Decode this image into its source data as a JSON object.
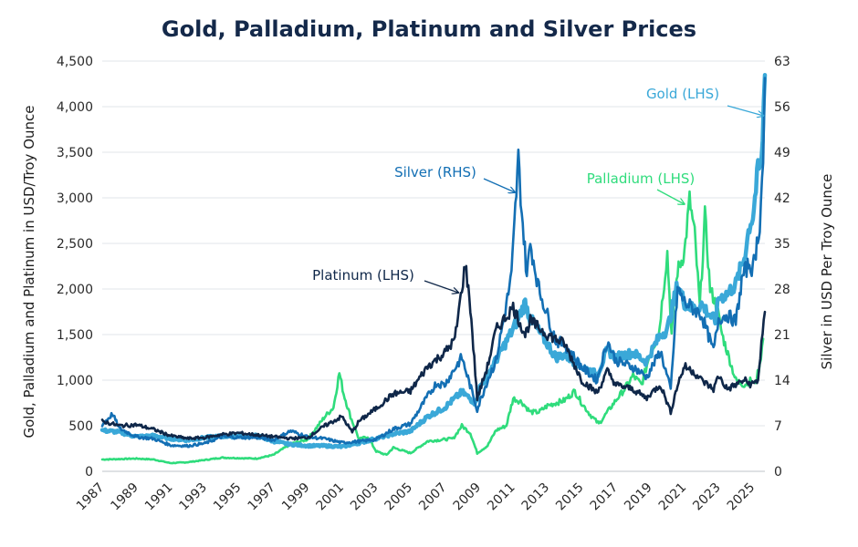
{
  "chart_data": {
    "type": "line",
    "title": "Gold, Palladium, Platinum and Silver Prices",
    "ylabel_left": "Gold, Palladium and Platinum in USD/Troy Ounce",
    "ylabel_right": "Silver in USD Per Troy Ounce",
    "ylim_left": [
      0,
      4500
    ],
    "ylim_right": [
      0,
      63
    ],
    "xlim": [
      1987,
      2025.7
    ],
    "yticks_left": [
      "0",
      "500",
      "1,000",
      "1,500",
      "2,000",
      "2,500",
      "3,000",
      "3,500",
      "4,000",
      "4,500"
    ],
    "yticks_right": [
      "0",
      "7",
      "14",
      "21",
      "28",
      "35",
      "42",
      "49",
      "56",
      "63"
    ],
    "xticks": [
      "1987",
      "1989",
      "1991",
      "1993",
      "1995",
      "1997",
      "1999",
      "2001",
      "2003",
      "2005",
      "2007",
      "2009",
      "2011",
      "2013",
      "2015",
      "2017",
      "2019",
      "2021",
      "2023",
      "2025"
    ],
    "grid": true,
    "series": [
      {
        "name": "Palladium (LHS)",
        "axis": "left",
        "color": "#2fdc7c",
        "width": 2.6,
        "points": [
          [
            1987,
            130
          ],
          [
            1989,
            140
          ],
          [
            1990,
            130
          ],
          [
            1991,
            90
          ],
          [
            1992,
            100
          ],
          [
            1994,
            150
          ],
          [
            1996,
            140
          ],
          [
            1997,
            180
          ],
          [
            1998,
            300
          ],
          [
            1999,
            350
          ],
          [
            2000,
            600
          ],
          [
            2000.5,
            700
          ],
          [
            2000.85,
            1080
          ],
          [
            2001.1,
            850
          ],
          [
            2001.5,
            600
          ],
          [
            2002,
            350
          ],
          [
            2002.5,
            380
          ],
          [
            2003,
            220
          ],
          [
            2003.6,
            180
          ],
          [
            2004,
            260
          ],
          [
            2005,
            200
          ],
          [
            2006,
            330
          ],
          [
            2007,
            350
          ],
          [
            2007.5,
            360
          ],
          [
            2008,
            500
          ],
          [
            2008.5,
            420
          ],
          [
            2008.9,
            200
          ],
          [
            2009.5,
            280
          ],
          [
            2010,
            450
          ],
          [
            2010.6,
            500
          ],
          [
            2011,
            800
          ],
          [
            2011.5,
            760
          ],
          [
            2012,
            650
          ],
          [
            2012.5,
            650
          ],
          [
            2013,
            720
          ],
          [
            2014,
            780
          ],
          [
            2014.6,
            880
          ],
          [
            2015,
            750
          ],
          [
            2015.5,
            620
          ],
          [
            2016,
            520
          ],
          [
            2016.5,
            650
          ],
          [
            2017,
            780
          ],
          [
            2017.5,
            900
          ],
          [
            2018,
            1050
          ],
          [
            2018.5,
            950
          ],
          [
            2019,
            1300
          ],
          [
            2019.5,
            1500
          ],
          [
            2020,
            2400
          ],
          [
            2020.25,
            1500
          ],
          [
            2020.6,
            2200
          ],
          [
            2021,
            2400
          ],
          [
            2021.3,
            2980
          ],
          [
            2021.6,
            2600
          ],
          [
            2021.9,
            1800
          ],
          [
            2022.2,
            2800
          ],
          [
            2022.5,
            2000
          ],
          [
            2022.9,
            1800
          ],
          [
            2023.2,
            1500
          ],
          [
            2023.6,
            1250
          ],
          [
            2024,
            1000
          ],
          [
            2024.5,
            950
          ],
          [
            2024.9,
            1000
          ],
          [
            2025.1,
            950
          ],
          [
            2025.4,
            1150
          ],
          [
            2025.6,
            1500
          ]
        ]
      },
      {
        "name": "Gold (LHS)",
        "axis": "left",
        "color": "#3aa8d8",
        "width": 4.5,
        "points": [
          [
            1987,
            450
          ],
          [
            1988,
            430
          ],
          [
            1989,
            380
          ],
          [
            1990,
            390
          ],
          [
            1991,
            360
          ],
          [
            1992,
            340
          ],
          [
            1993,
            370
          ],
          [
            1994,
            385
          ],
          [
            1995,
            385
          ],
          [
            1996,
            390
          ],
          [
            1997,
            330
          ],
          [
            1998,
            295
          ],
          [
            1999,
            280
          ],
          [
            2000,
            280
          ],
          [
            2001,
            270
          ],
          [
            2002,
            310
          ],
          [
            2003,
            360
          ],
          [
            2004,
            410
          ],
          [
            2005,
            440
          ],
          [
            2006,
            600
          ],
          [
            2007,
            700
          ],
          [
            2008,
            870
          ],
          [
            2008.8,
            750
          ],
          [
            2009,
            900
          ],
          [
            2010,
            1220
          ],
          [
            2011,
            1560
          ],
          [
            2011.7,
            1850
          ],
          [
            2012,
            1670
          ],
          [
            2013,
            1400
          ],
          [
            2013.5,
            1250
          ],
          [
            2014,
            1280
          ],
          [
            2015,
            1150
          ],
          [
            2015.9,
            1060
          ],
          [
            2016.5,
            1330
          ],
          [
            2017,
            1250
          ],
          [
            2018,
            1300
          ],
          [
            2018.8,
            1200
          ],
          [
            2019,
            1290
          ],
          [
            2019.6,
            1500
          ],
          [
            2020,
            1550
          ],
          [
            2020.6,
            2050
          ],
          [
            2021,
            1850
          ],
          [
            2021.5,
            1780
          ],
          [
            2022,
            1830
          ],
          [
            2022.8,
            1640
          ],
          [
            2023,
            1900
          ],
          [
            2023.5,
            1950
          ],
          [
            2024,
            2050
          ],
          [
            2024.5,
            2350
          ],
          [
            2024.8,
            2700
          ],
          [
            2025,
            2800
          ],
          [
            2025.3,
            3300
          ],
          [
            2025.5,
            3350
          ],
          [
            2025.7,
            4350
          ]
        ]
      },
      {
        "name": "Silver (RHS)",
        "axis": "right",
        "color": "#136fb4",
        "width": 2.6,
        "points": [
          [
            1987,
            7.2
          ],
          [
            1987.6,
            8.8
          ],
          [
            1988,
            6.6
          ],
          [
            1989,
            5.3
          ],
          [
            1990,
            5.0
          ],
          [
            1991,
            4.0
          ],
          [
            1992,
            3.9
          ],
          [
            1993,
            4.3
          ],
          [
            1994,
            5.3
          ],
          [
            1995,
            5.2
          ],
          [
            1996,
            5.2
          ],
          [
            1997,
            4.8
          ],
          [
            1998,
            6.2
          ],
          [
            1999,
            5.3
          ],
          [
            2000,
            5.0
          ],
          [
            2001,
            4.4
          ],
          [
            2002,
            4.6
          ],
          [
            2003,
            4.9
          ],
          [
            2004,
            6.5
          ],
          [
            2005,
            7.3
          ],
          [
            2006,
            11.5
          ],
          [
            2006.5,
            13.5
          ],
          [
            2007,
            13.3
          ],
          [
            2008,
            17.5
          ],
          [
            2008.9,
            9.5
          ],
          [
            2009.5,
            14
          ],
          [
            2010,
            17
          ],
          [
            2010.9,
            30
          ],
          [
            2011.3,
            48
          ],
          [
            2011.5,
            40
          ],
          [
            2011.8,
            30
          ],
          [
            2012,
            35
          ],
          [
            2012.5,
            28
          ],
          [
            2013,
            24
          ],
          [
            2013.5,
            20
          ],
          [
            2014,
            19.5
          ],
          [
            2015,
            16
          ],
          [
            2015.9,
            14
          ],
          [
            2016.5,
            20
          ],
          [
            2017,
            17
          ],
          [
            2018,
            16
          ],
          [
            2018.8,
            14.5
          ],
          [
            2019,
            15.5
          ],
          [
            2019.6,
            18.5
          ],
          [
            2020.2,
            12.5
          ],
          [
            2020.6,
            28
          ],
          [
            2021,
            26
          ],
          [
            2021.5,
            25
          ],
          [
            2022,
            24
          ],
          [
            2022.7,
            18.5
          ],
          [
            2023,
            23.5
          ],
          [
            2023.5,
            24
          ],
          [
            2024,
            23
          ],
          [
            2024.4,
            30
          ],
          [
            2024.8,
            32
          ],
          [
            2025,
            31
          ],
          [
            2025.4,
            38
          ],
          [
            2025.6,
            48
          ],
          [
            2025.7,
            58
          ]
        ]
      },
      {
        "name": "Platinum (LHS)",
        "axis": "left",
        "color": "#0f2749",
        "width": 2.6,
        "points": [
          [
            1987,
            550
          ],
          [
            1988,
            500
          ],
          [
            1989,
            510
          ],
          [
            1990,
            460
          ],
          [
            1991,
            390
          ],
          [
            1992,
            360
          ],
          [
            1993,
            370
          ],
          [
            1994,
            405
          ],
          [
            1995,
            420
          ],
          [
            1996,
            400
          ],
          [
            1997,
            380
          ],
          [
            1998,
            360
          ],
          [
            1999,
            370
          ],
          [
            2000,
            500
          ],
          [
            2001,
            600
          ],
          [
            2001.6,
            430
          ],
          [
            2002,
            550
          ],
          [
            2003,
            690
          ],
          [
            2004,
            850
          ],
          [
            2005,
            880
          ],
          [
            2006,
            1150
          ],
          [
            2007,
            1300
          ],
          [
            2007.6,
            1450
          ],
          [
            2008,
            2000
          ],
          [
            2008.2,
            2280
          ],
          [
            2008.5,
            1800
          ],
          [
            2008.9,
            800
          ],
          [
            2009.5,
            1150
          ],
          [
            2010,
            1550
          ],
          [
            2011,
            1800
          ],
          [
            2011.7,
            1500
          ],
          [
            2012,
            1650
          ],
          [
            2013,
            1500
          ],
          [
            2014,
            1400
          ],
          [
            2015,
            1000
          ],
          [
            2015.9,
            860
          ],
          [
            2016.5,
            1100
          ],
          [
            2017,
            950
          ],
          [
            2018,
            900
          ],
          [
            2018.8,
            800
          ],
          [
            2019,
            850
          ],
          [
            2019.6,
            950
          ],
          [
            2020.2,
            650
          ],
          [
            2020.6,
            950
          ],
          [
            2021,
            1150
          ],
          [
            2021.5,
            1100
          ],
          [
            2022,
            1000
          ],
          [
            2022.7,
            900
          ],
          [
            2023,
            1050
          ],
          [
            2023.5,
            900
          ],
          [
            2024,
            950
          ],
          [
            2024.5,
            1000
          ],
          [
            2024.9,
            950
          ],
          [
            2025.3,
            1000
          ],
          [
            2025.5,
            1400
          ],
          [
            2025.7,
            1700
          ]
        ]
      }
    ],
    "annotations": [
      {
        "text": "Gold (LHS)",
        "series": "Gold (LHS)",
        "target": [
          2025.62,
          3900
        ]
      },
      {
        "text": "Silver (RHS)",
        "series": "Silver (RHS)",
        "target": [
          2011.1,
          3060
        ]
      },
      {
        "text": "Palladium (LHS)",
        "series": "Palladium (LHS)",
        "target": [
          2021.0,
          2930
        ]
      },
      {
        "text": "Platinum (LHS)",
        "series": "Platinum (LHS)",
        "target": [
          2007.8,
          1960
        ]
      }
    ]
  }
}
